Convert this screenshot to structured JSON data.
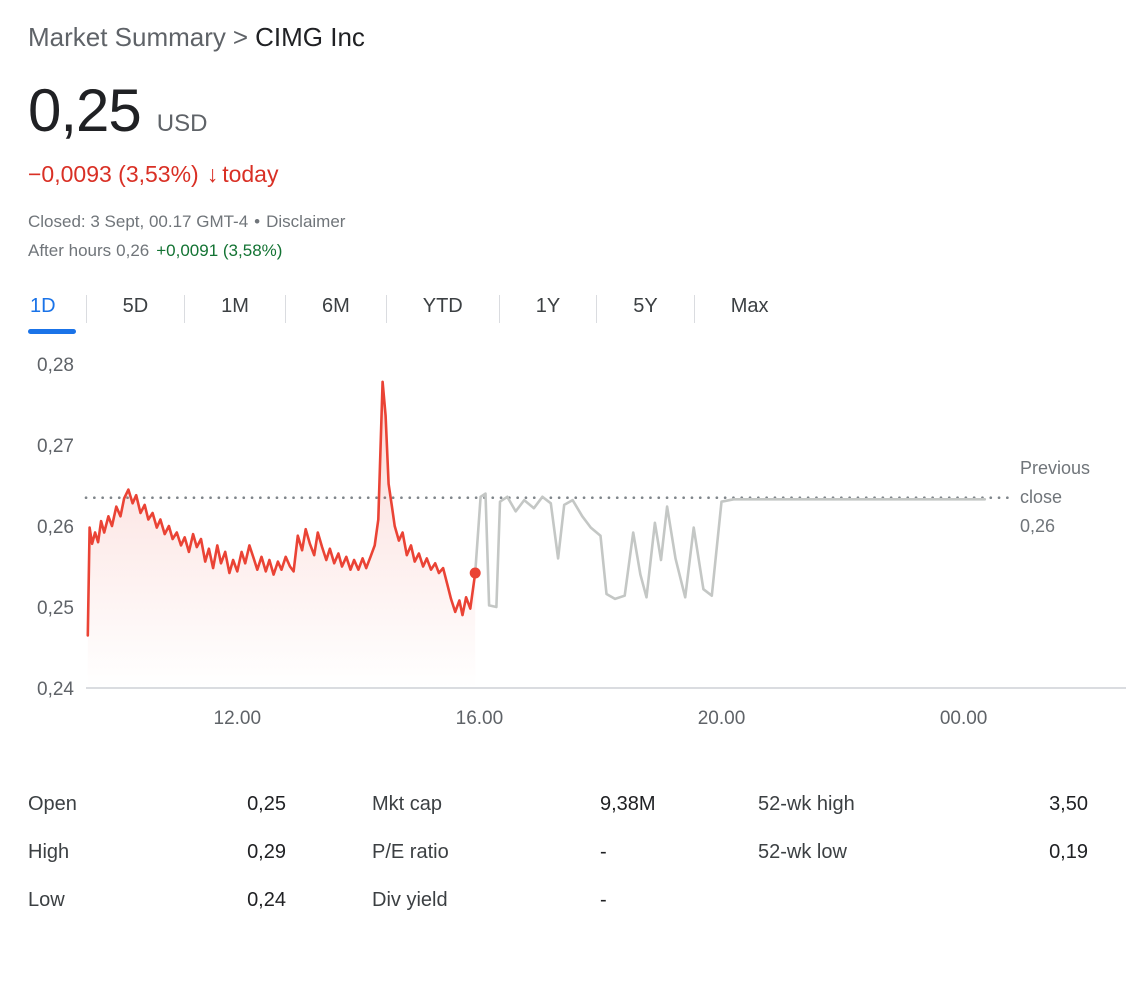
{
  "header": {
    "breadcrumb": "Market Summary",
    "separator": ">",
    "company": "CIMG Inc"
  },
  "quote": {
    "price": "0,25",
    "currency": "USD",
    "change": "−0,0093 (3,53%)",
    "change_arrow_glyph": "↓",
    "change_period": "today",
    "status": "Closed: 3 Sept, 00.17 GMT-4",
    "bullet": "•",
    "disclaimer": "Disclaimer",
    "after_hours_label": "After hours",
    "after_hours_price": "0,26",
    "after_hours_change": "+0,0091 (3,58%)",
    "down_color": "#d93025",
    "up_color": "#137333"
  },
  "tabs": {
    "active_color": "#1a73e8",
    "items": [
      {
        "label": "1D",
        "active": true
      },
      {
        "label": "5D",
        "active": false
      },
      {
        "label": "1M",
        "active": false
      },
      {
        "label": "6M",
        "active": false
      },
      {
        "label": "YTD",
        "active": false
      },
      {
        "label": "1Y",
        "active": false
      },
      {
        "label": "5Y",
        "active": false
      },
      {
        "label": "Max",
        "active": false
      }
    ]
  },
  "chart_data": {
    "type": "line",
    "x_axis": {
      "min": 9.5,
      "max": 24.7,
      "ticks": [
        {
          "t": 12,
          "label": "12.00"
        },
        {
          "t": 16,
          "label": "16.00"
        },
        {
          "t": 20,
          "label": "20.00"
        },
        {
          "t": 24,
          "label": "00.00"
        }
      ]
    },
    "y_axis": {
      "min": 0.24,
      "max": 0.28,
      "ticks": [
        {
          "v": 0.28,
          "label": "0,28"
        },
        {
          "v": 0.27,
          "label": "0,27"
        },
        {
          "v": 0.26,
          "label": "0,26"
        },
        {
          "v": 0.25,
          "label": "0,25"
        },
        {
          "v": 0.24,
          "label": "0,24"
        }
      ]
    },
    "previous_close": {
      "value": 0.2635,
      "label_lines": [
        "Previous",
        "close",
        "0,26"
      ]
    },
    "grid": "off",
    "axis_color": "#dadce0",
    "dotted_line_color": "#80868b",
    "series": [
      {
        "name": "market-hours",
        "color": "#ea4335",
        "fill": true,
        "points": [
          [
            9.53,
            0.2465
          ],
          [
            9.56,
            0.2598
          ],
          [
            9.6,
            0.2578
          ],
          [
            9.65,
            0.2592
          ],
          [
            9.7,
            0.258
          ],
          [
            9.75,
            0.2606
          ],
          [
            9.8,
            0.2592
          ],
          [
            9.87,
            0.2612
          ],
          [
            9.93,
            0.26
          ],
          [
            10.0,
            0.2624
          ],
          [
            10.07,
            0.2612
          ],
          [
            10.13,
            0.2634
          ],
          [
            10.2,
            0.2645
          ],
          [
            10.27,
            0.2628
          ],
          [
            10.33,
            0.2638
          ],
          [
            10.4,
            0.2616
          ],
          [
            10.47,
            0.2626
          ],
          [
            10.53,
            0.2608
          ],
          [
            10.6,
            0.2616
          ],
          [
            10.67,
            0.2598
          ],
          [
            10.73,
            0.2608
          ],
          [
            10.8,
            0.259
          ],
          [
            10.87,
            0.26
          ],
          [
            10.93,
            0.2584
          ],
          [
            11.0,
            0.2592
          ],
          [
            11.07,
            0.2576
          ],
          [
            11.13,
            0.2586
          ],
          [
            11.2,
            0.2568
          ],
          [
            11.27,
            0.259
          ],
          [
            11.33,
            0.2574
          ],
          [
            11.4,
            0.2584
          ],
          [
            11.47,
            0.2556
          ],
          [
            11.53,
            0.2572
          ],
          [
            11.6,
            0.2548
          ],
          [
            11.67,
            0.2576
          ],
          [
            11.73,
            0.2554
          ],
          [
            11.8,
            0.2568
          ],
          [
            11.87,
            0.2542
          ],
          [
            11.93,
            0.2558
          ],
          [
            12.0,
            0.2544
          ],
          [
            12.07,
            0.2568
          ],
          [
            12.13,
            0.2554
          ],
          [
            12.2,
            0.2576
          ],
          [
            12.27,
            0.256
          ],
          [
            12.33,
            0.2546
          ],
          [
            12.4,
            0.2562
          ],
          [
            12.47,
            0.2544
          ],
          [
            12.53,
            0.2558
          ],
          [
            12.6,
            0.254
          ],
          [
            12.67,
            0.2556
          ],
          [
            12.73,
            0.2546
          ],
          [
            12.8,
            0.2562
          ],
          [
            12.87,
            0.255
          ],
          [
            12.93,
            0.2544
          ],
          [
            13.0,
            0.2588
          ],
          [
            13.07,
            0.257
          ],
          [
            13.13,
            0.2596
          ],
          [
            13.2,
            0.2578
          ],
          [
            13.27,
            0.2564
          ],
          [
            13.33,
            0.2592
          ],
          [
            13.4,
            0.2574
          ],
          [
            13.47,
            0.2558
          ],
          [
            13.53,
            0.2572
          ],
          [
            13.6,
            0.2554
          ],
          [
            13.67,
            0.2566
          ],
          [
            13.73,
            0.255
          ],
          [
            13.8,
            0.2562
          ],
          [
            13.87,
            0.2546
          ],
          [
            13.93,
            0.2558
          ],
          [
            14.0,
            0.2546
          ],
          [
            14.07,
            0.256
          ],
          [
            14.13,
            0.2548
          ],
          [
            14.2,
            0.2562
          ],
          [
            14.27,
            0.2576
          ],
          [
            14.33,
            0.2608
          ],
          [
            14.4,
            0.2778
          ],
          [
            14.45,
            0.2736
          ],
          [
            14.5,
            0.2652
          ],
          [
            14.55,
            0.2626
          ],
          [
            14.6,
            0.26
          ],
          [
            14.67,
            0.2582
          ],
          [
            14.73,
            0.2592
          ],
          [
            14.8,
            0.2564
          ],
          [
            14.87,
            0.2576
          ],
          [
            14.93,
            0.2556
          ],
          [
            15.0,
            0.2566
          ],
          [
            15.07,
            0.255
          ],
          [
            15.13,
            0.256
          ],
          [
            15.2,
            0.2546
          ],
          [
            15.27,
            0.2554
          ],
          [
            15.33,
            0.2542
          ],
          [
            15.4,
            0.2548
          ],
          [
            15.47,
            0.2528
          ],
          [
            15.53,
            0.251
          ],
          [
            15.6,
            0.2494
          ],
          [
            15.67,
            0.2508
          ],
          [
            15.72,
            0.249
          ],
          [
            15.78,
            0.2512
          ],
          [
            15.85,
            0.2498
          ],
          [
            15.93,
            0.2542
          ]
        ]
      },
      {
        "name": "after-hours",
        "color": "#c4c7c5",
        "fill": false,
        "points": [
          [
            15.93,
            0.2542
          ],
          [
            16.02,
            0.2636
          ],
          [
            16.1,
            0.264
          ],
          [
            16.16,
            0.2502
          ],
          [
            16.28,
            0.25
          ],
          [
            16.34,
            0.263
          ],
          [
            16.46,
            0.2636
          ],
          [
            16.6,
            0.2618
          ],
          [
            16.74,
            0.2632
          ],
          [
            16.9,
            0.2622
          ],
          [
            17.04,
            0.2636
          ],
          [
            17.18,
            0.2628
          ],
          [
            17.3,
            0.256
          ],
          [
            17.4,
            0.2626
          ],
          [
            17.54,
            0.2632
          ],
          [
            17.7,
            0.2612
          ],
          [
            17.84,
            0.2598
          ],
          [
            18.0,
            0.2588
          ],
          [
            18.1,
            0.2516
          ],
          [
            18.24,
            0.251
          ],
          [
            18.4,
            0.2514
          ],
          [
            18.54,
            0.2592
          ],
          [
            18.66,
            0.254
          ],
          [
            18.76,
            0.2512
          ],
          [
            18.9,
            0.2604
          ],
          [
            19.0,
            0.2558
          ],
          [
            19.1,
            0.2624
          ],
          [
            19.24,
            0.256
          ],
          [
            19.4,
            0.2512
          ],
          [
            19.54,
            0.2598
          ],
          [
            19.7,
            0.2522
          ],
          [
            19.84,
            0.2514
          ],
          [
            20.0,
            0.263
          ],
          [
            20.2,
            0.2633
          ],
          [
            24.35,
            0.2633
          ]
        ]
      }
    ],
    "end_dot": {
      "t": 15.93,
      "p": 0.2542,
      "color": "#ea4335"
    }
  },
  "stats": {
    "columns": [
      {
        "rows": [
          {
            "label": "Open",
            "value": "0,25"
          },
          {
            "label": "High",
            "value": "0,29"
          },
          {
            "label": "Low",
            "value": "0,24"
          }
        ]
      },
      {
        "rows": [
          {
            "label": "Mkt cap",
            "value": "9,38M"
          },
          {
            "label": "P/E ratio",
            "value": "-"
          },
          {
            "label": "Div yield",
            "value": "-"
          }
        ]
      },
      {
        "rows": [
          {
            "label": "52-wk high",
            "value": "3,50"
          },
          {
            "label": "52-wk low",
            "value": "0,19"
          }
        ]
      }
    ]
  }
}
